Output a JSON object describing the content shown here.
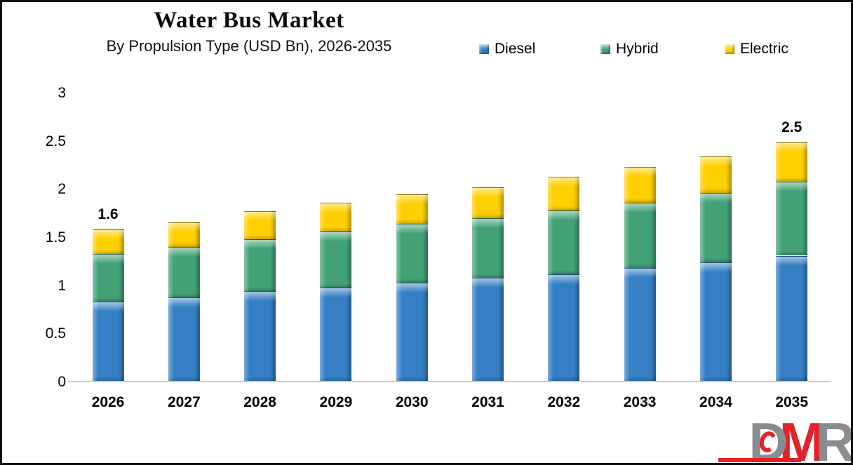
{
  "header": {
    "title": "Water Bus Market",
    "subtitle": "By Propulsion Type (USD Bn), 2026-2035"
  },
  "legend": [
    {
      "label": "Diesel",
      "color": "#3580C4"
    },
    {
      "label": "Hybrid",
      "color": "#42A276"
    },
    {
      "label": "Electric",
      "color": "#FFCF00"
    }
  ],
  "chart_data": {
    "type": "bar",
    "stacked": true,
    "title": "Water Bus Market",
    "subtitle": "By Propulsion Type (USD Bn), 2026-2035",
    "unit": "USD Bn",
    "categories": [
      "2026",
      "2027",
      "2028",
      "2029",
      "2030",
      "2031",
      "2032",
      "2033",
      "2034",
      "2035"
    ],
    "series": [
      {
        "name": "Diesel",
        "color": "#3580C4",
        "values": [
          0.82,
          0.87,
          0.93,
          0.97,
          1.02,
          1.07,
          1.11,
          1.17,
          1.23,
          1.3
        ]
      },
      {
        "name": "Hybrid",
        "color": "#42A276",
        "values": [
          0.5,
          0.52,
          0.54,
          0.58,
          0.61,
          0.62,
          0.66,
          0.68,
          0.72,
          0.77
        ]
      },
      {
        "name": "Electric",
        "color": "#FFCF00",
        "values": [
          0.25,
          0.26,
          0.29,
          0.3,
          0.31,
          0.32,
          0.35,
          0.37,
          0.38,
          0.41
        ]
      }
    ],
    "totals": [
      1.57,
      1.65,
      1.76,
      1.85,
      1.94,
      2.01,
      2.12,
      2.22,
      2.33,
      2.48
    ],
    "total_labels": {
      "2026": "1.6",
      "2035": "2.5"
    },
    "ylim": [
      0,
      3
    ],
    "yticks": [
      "3",
      "2.5",
      "2",
      "1.5",
      "1",
      "0.5",
      "0"
    ],
    "grid": false,
    "legend_position": "top-right",
    "axis_line_color": "#C9CACB"
  },
  "logo": {
    "letters": [
      {
        "char": "D",
        "color": "#8A8D90"
      },
      {
        "char": "M",
        "color": "#E2222A"
      },
      {
        "char": "R",
        "color": "#8A8D90"
      }
    ],
    "underline_color": "#E2222A"
  }
}
